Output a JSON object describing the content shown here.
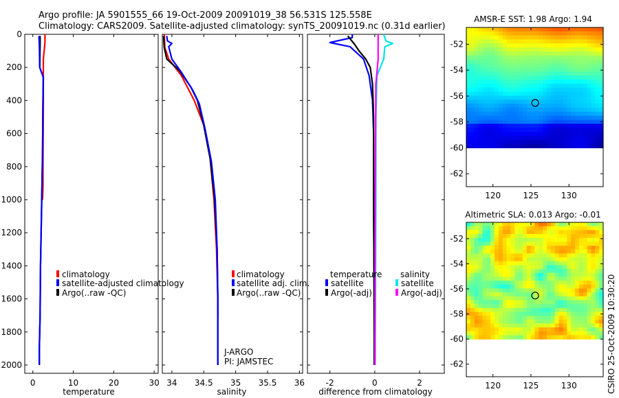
{
  "header": {
    "line1": "Argo profile: JA 5901555_66 19-Oct-2009 20091019_38 56.531S 125.558E",
    "line2": "Climatology: CARS2009. Satellite-adjusted climatology: synTS_20091019.nc (0.31d earlier)"
  },
  "side_label": "CSIRO 25-Oct-2009 10:30:20",
  "colors": {
    "climatology": "#ff0000",
    "satellite": "#0000ff",
    "argo": "#000000",
    "sal_satellite": "#00e5ee",
    "sal_argo": "#ff00ff",
    "land_white": "#ffffff"
  },
  "chart_data": [
    {
      "type": "line",
      "id": "temperature",
      "xlabel": "temperature",
      "xlim": [
        -2,
        31
      ],
      "ylim": [
        2050,
        0
      ],
      "xticks": [
        0,
        10,
        20,
        30
      ],
      "yticks": [
        0,
        200,
        400,
        600,
        800,
        1000,
        1200,
        1400,
        1600,
        1800,
        2000
      ],
      "legend": [
        "climatology",
        "satellite-adjusted climatology",
        "Argo(..raw -QC)"
      ],
      "series": [
        {
          "name": "climatology",
          "color": "#ff0000",
          "x": [
            3.0,
            3.0,
            2.6,
            2.6,
            2.5,
            2.5,
            2.4,
            2.4
          ],
          "y": [
            0,
            50,
            150,
            400,
            800,
            920,
            1000,
            1000
          ]
        },
        {
          "name": "Argo(..raw -QC)",
          "color": "#000000",
          "x": [
            1.8,
            1.8,
            1.7,
            2.6,
            2.5,
            2.4,
            2.2,
            1.9,
            1.8,
            1.6,
            1.6
          ],
          "y": [
            10,
            60,
            200,
            260,
            400,
            700,
            1000,
            1400,
            1700,
            1900,
            2000
          ]
        },
        {
          "name": "satellite-adjusted climatology",
          "color": "#0000ff",
          "x": [
            1.5,
            1.6,
            1.7,
            2.6,
            2.5,
            2.4,
            2.2,
            1.9,
            1.8,
            1.6,
            1.6
          ],
          "y": [
            10,
            60,
            200,
            260,
            400,
            700,
            1000,
            1400,
            1700,
            1900,
            2000
          ]
        }
      ]
    },
    {
      "type": "line",
      "id": "salinity",
      "xlabel": "salinity",
      "xlim": [
        33.85,
        36.05
      ],
      "ylim": [
        2050,
        0
      ],
      "xticks": [
        34,
        34.5,
        35,
        35.5,
        36
      ],
      "legend": [
        "climatology",
        "satellite adj. clim.",
        "Argo(..raw -QC)"
      ],
      "annotations": [
        "J-ARGO",
        "PI: JAMSTEC"
      ],
      "series": [
        {
          "name": "climatology",
          "color": "#ff0000",
          "x": [
            33.88,
            33.89,
            33.95,
            34.15,
            34.35,
            34.5,
            34.6,
            34.66,
            34.7,
            34.72,
            34.72
          ],
          "y": [
            0,
            80,
            150,
            250,
            400,
            550,
            750,
            1000,
            1300,
            1600,
            1700
          ]
        },
        {
          "name": "Argo(..raw -QC)",
          "color": "#000000",
          "x": [
            33.87,
            33.88,
            33.92,
            34.12,
            34.3,
            34.4,
            34.5,
            34.6,
            34.67,
            34.71,
            34.72,
            34.72
          ],
          "y": [
            10,
            80,
            150,
            220,
            320,
            400,
            550,
            750,
            1000,
            1300,
            1600,
            2000
          ]
        },
        {
          "name": "satellite adj. clim.",
          "color": "#0000ff",
          "x": [
            33.92,
            33.93,
            34.0,
            33.95,
            34.0,
            34.15,
            34.33,
            34.43,
            34.52,
            34.62,
            34.68,
            34.71,
            34.72,
            34.72
          ],
          "y": [
            10,
            40,
            55,
            75,
            150,
            230,
            340,
            420,
            570,
            770,
            1000,
            1300,
            1600,
            2000
          ]
        }
      ]
    },
    {
      "type": "line",
      "id": "difference",
      "xlabel": "difference from climatology",
      "xlim": [
        -3.0,
        3.1
      ],
      "ylim": [
        2050,
        0
      ],
      "xticks": [
        -2,
        0,
        2
      ],
      "legend": {
        "temperature": {
          "title": "temperature",
          "items": [
            "satellite",
            "Argo(-adj)"
          ]
        },
        "salinity": {
          "title": "salinity",
          "items": [
            "satellite",
            "Argo(-adj)"
          ]
        }
      },
      "series": [
        {
          "name": "temperature satellite",
          "color": "#0000ff",
          "x": [
            -1.0,
            -1.0,
            -2.0,
            -1.1,
            -0.5,
            -0.25,
            -0.1,
            -0.05,
            -0.05,
            -0.03,
            -0.02
          ],
          "y": [
            0,
            20,
            50,
            75,
            150,
            250,
            400,
            600,
            1000,
            1500,
            2000
          ]
        },
        {
          "name": "temperature Argo(-adj)",
          "color": "#000000",
          "x": [
            -1.2,
            -0.9,
            -0.7,
            -0.4,
            -0.2,
            -0.1,
            -0.05,
            -0.05,
            -0.03,
            -0.02
          ],
          "y": [
            10,
            60,
            100,
            150,
            200,
            300,
            500,
            1000,
            1500,
            2000
          ]
        },
        {
          "name": "salinity satellite",
          "color": "#00e5ee",
          "x": [
            0.4,
            0.5,
            0.8,
            0.45,
            0.4,
            0.1,
            0.05,
            0.05,
            0.02
          ],
          "y": [
            0,
            40,
            55,
            75,
            150,
            250,
            500,
            1000,
            2000
          ]
        },
        {
          "name": "salinity Argo(-adj)",
          "color": "#ff00ff",
          "x": [
            0.15,
            0.15,
            0.15,
            0.05,
            0.02,
            0.01
          ],
          "y": [
            0,
            50,
            150,
            300,
            1000,
            2000
          ]
        }
      ]
    },
    {
      "type": "heatmap",
      "id": "sst",
      "title": "AMSR-E SST: 1.98 Argo: 1.94",
      "xlim": [
        116.5,
        134.5
      ],
      "ylim": [
        -63,
        -50.7
      ],
      "xticks": [
        120,
        125,
        130
      ],
      "yticks": [
        -52,
        -54,
        -56,
        -58,
        -60,
        -62
      ],
      "data_bottom": -60,
      "float_lon": 125.558,
      "float_lat": -56.531
    },
    {
      "type": "heatmap",
      "id": "sla",
      "title": "Altimetric SLA: 0.013 Argo: -0.01",
      "xlim": [
        116.5,
        134.5
      ],
      "ylim": [
        -63,
        -50.7
      ],
      "xticks": [
        120,
        125,
        130
      ],
      "yticks": [
        -52,
        -54,
        -56,
        -58,
        -60,
        -62
      ],
      "data_bottom": -60,
      "float_lon": 125.558,
      "float_lat": -56.531
    }
  ]
}
